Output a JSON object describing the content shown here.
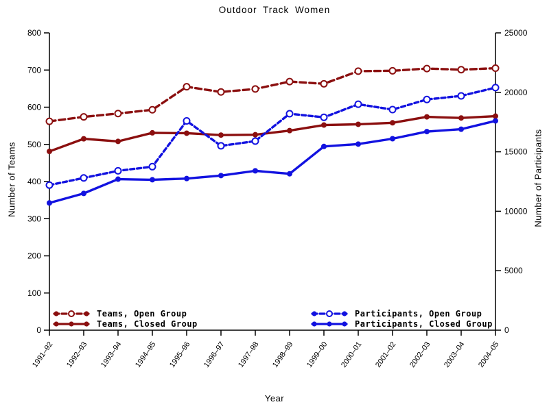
{
  "chart_data": {
    "type": "line",
    "title": "Outdoor Track Women",
    "xlabel": "Year",
    "ylabel_left": "Number of Teams",
    "ylabel_right": "Number of Participants",
    "ylim_left": [
      0,
      800
    ],
    "ylim_right": [
      0,
      25000
    ],
    "yticks_left": [
      0,
      100,
      200,
      300,
      400,
      500,
      600,
      700,
      800
    ],
    "yticks_right": [
      0,
      5000,
      10000,
      15000,
      20000,
      25000
    ],
    "grid": false,
    "legend_position": "inset-bottom",
    "categories": [
      "1991–92",
      "1992–93",
      "1993–94",
      "1994–95",
      "1995–96",
      "1996–97",
      "1997–98",
      "1998–99",
      "1999–00",
      "2000–01",
      "2001–02",
      "2002–03",
      "2003–04",
      "2004–05"
    ],
    "series": [
      {
        "name": "Teams, Open Group",
        "axis": "left",
        "style": "dashed",
        "marker": "open",
        "color": "#8B0F0F",
        "values": [
          562,
          574,
          583,
          593,
          655,
          641,
          649,
          669,
          663,
          697,
          698,
          704,
          701,
          705
        ]
      },
      {
        "name": "Teams, Closed Group",
        "axis": "left",
        "style": "solid",
        "marker": "filled",
        "color": "#8B0F0F",
        "values": [
          481,
          515,
          508,
          531,
          530,
          525,
          526,
          537,
          552,
          554,
          558,
          574,
          571,
          576
        ]
      },
      {
        "name": "Participants, Open Group",
        "axis": "right",
        "style": "dashed",
        "marker": "open",
        "color": "#1212E0",
        "values": [
          12200,
          12800,
          13400,
          13750,
          17600,
          15500,
          15900,
          18200,
          17900,
          19000,
          18550,
          19400,
          19700,
          20400
        ]
      },
      {
        "name": "Participants, Closed Group",
        "axis": "right",
        "style": "solid",
        "marker": "filled",
        "color": "#1212E0",
        "values": [
          10700,
          11500,
          12700,
          12650,
          12750,
          13000,
          13400,
          13150,
          15450,
          15650,
          16100,
          16700,
          16900,
          17600
        ]
      }
    ]
  }
}
